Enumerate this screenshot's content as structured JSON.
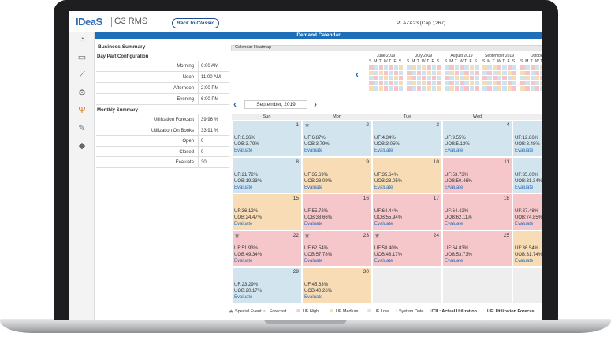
{
  "header": {
    "logo": "IDeaS",
    "product": "G3 RMS",
    "back_button": "Back to Classic",
    "property": "PLAZA23 (Cap.: 267)"
  },
  "title_bar": "Demand Calendar",
  "summary": {
    "title": "Business Summary",
    "day_part_title": "Day Part Configuration",
    "day_parts": [
      [
        "Morning",
        "6:00 AM"
      ],
      [
        "Noon",
        "11:00 AM"
      ],
      [
        "Afternoon",
        "2:00 PM"
      ],
      [
        "Evening",
        "6:00 PM"
      ]
    ],
    "monthly_title": "Monthly Summary",
    "monthly": [
      [
        "Utilization Forecast",
        "39.96 %"
      ],
      [
        "Utilization On Books",
        "33.91 %"
      ],
      [
        "Open",
        "0"
      ],
      [
        "Closed",
        "0"
      ],
      [
        "Evaluate",
        "30"
      ]
    ]
  },
  "heatmap": {
    "title": "Calendar Heatmap",
    "months": [
      "June 2019",
      "July 2019",
      "August 2019",
      "September 2019",
      "October"
    ],
    "weekdays": [
      "S",
      "M",
      "T",
      "W",
      "T",
      "F",
      "S"
    ]
  },
  "calendar": {
    "month": "September, 2019",
    "weekdays": [
      "Sun",
      "Mon",
      "Tue",
      "Wed"
    ],
    "weeks": [
      [
        {
          "day": "1",
          "uf": "UF:6.36%",
          "uob": "UOB:3.79%",
          "action": "Evaluate",
          "status": "low",
          "special": false
        },
        {
          "day": "2",
          "uf": "UF:6.87%",
          "uob": "UOB:3.79%",
          "action": "Evaluate",
          "status": "low",
          "special": true
        },
        {
          "day": "3",
          "uf": "UF:4.34%",
          "uob": "UOB:3.05%",
          "action": "Evaluate",
          "status": "low",
          "special": false
        },
        {
          "day": "4",
          "uf": "UF:9.55%",
          "uob": "UOB:5.13%",
          "action": "Evaluate",
          "status": "low",
          "special": false
        },
        {
          "uf": "UF:12.86%",
          "uob": "UOB:8.48%",
          "action": "Evaluate",
          "status": "low",
          "special": false
        }
      ],
      [
        {
          "day": "8",
          "uf": "UF:21.72%",
          "uob": "UOB:19.33%",
          "action": "Evaluate",
          "status": "low",
          "special": false
        },
        {
          "day": "9",
          "uf": "UF:35.69%",
          "uob": "UOB:28.09%",
          "action": "Evaluate",
          "status": "medium",
          "special": false
        },
        {
          "day": "10",
          "uf": "UF:35.64%",
          "uob": "UOB:28.05%",
          "action": "Evaluate",
          "status": "medium",
          "special": false
        },
        {
          "day": "11",
          "uf": "UF:53.73%",
          "uob": "UOB:50.46%",
          "action": "Evaluate",
          "status": "high",
          "special": false
        },
        {
          "uf": "UF:35.60%",
          "uob": "UOB:31.34%",
          "action": "Evaluate",
          "status": "low",
          "special": false
        }
      ],
      [
        {
          "day": "15",
          "uf": "UF:36.12%",
          "uob": "UOB:24.47%",
          "action": "Evaluate",
          "status": "medium",
          "special": false
        },
        {
          "day": "16",
          "uf": "UF:55.72%",
          "uob": "UOB:38.66%",
          "action": "Evaluate",
          "status": "high",
          "special": false
        },
        {
          "day": "17",
          "uf": "UF:64.44%",
          "uob": "UOB:55.94%",
          "action": "Evaluate",
          "status": "high",
          "special": false
        },
        {
          "day": "18",
          "uf": "UF:64.42%",
          "uob": "UOB:62.11%",
          "action": "Evaluate",
          "status": "high",
          "special": false
        },
        {
          "uf": "UF:87.48%",
          "uob": "UOB:74.85%",
          "action": "Evaluate",
          "status": "high",
          "special": false
        }
      ],
      [
        {
          "day": "22",
          "uf": "UF:51.93%",
          "uob": "UOB:49.34%",
          "action": "Evaluate",
          "status": "high",
          "special": true
        },
        {
          "day": "23",
          "uf": "UF:62.54%",
          "uob": "UOB:57.78%",
          "action": "Evaluate",
          "status": "high",
          "special": true
        },
        {
          "day": "24",
          "uf": "UF:58.40%",
          "uob": "UOB:48.17%",
          "action": "Evaluate",
          "status": "high",
          "special": true
        },
        {
          "day": "25",
          "uf": "UF:64.83%",
          "uob": "UOB:53.73%",
          "action": "Evaluate",
          "status": "high",
          "special": false
        },
        {
          "uf": "UF:36.54%",
          "uob": "UOB:31.74%",
          "action": "Evaluate",
          "status": "medium",
          "special": false
        }
      ],
      [
        {
          "day": "29",
          "uf": "UF:23.29%",
          "uob": "UOB:20.17%",
          "action": "Evaluate",
          "status": "low",
          "special": false
        },
        {
          "day": "30",
          "uf": "UF:45.63%",
          "uob": "UOB:40.26%",
          "action": "Evaluate",
          "status": "medium",
          "special": false
        }
      ]
    ]
  },
  "legend": [
    "Special Event",
    "Forecast",
    "UF High",
    "UF Medium",
    "UF Low",
    "System Date",
    "UTIL: Actual Utilization",
    "UF: Utilization Forecas"
  ]
}
